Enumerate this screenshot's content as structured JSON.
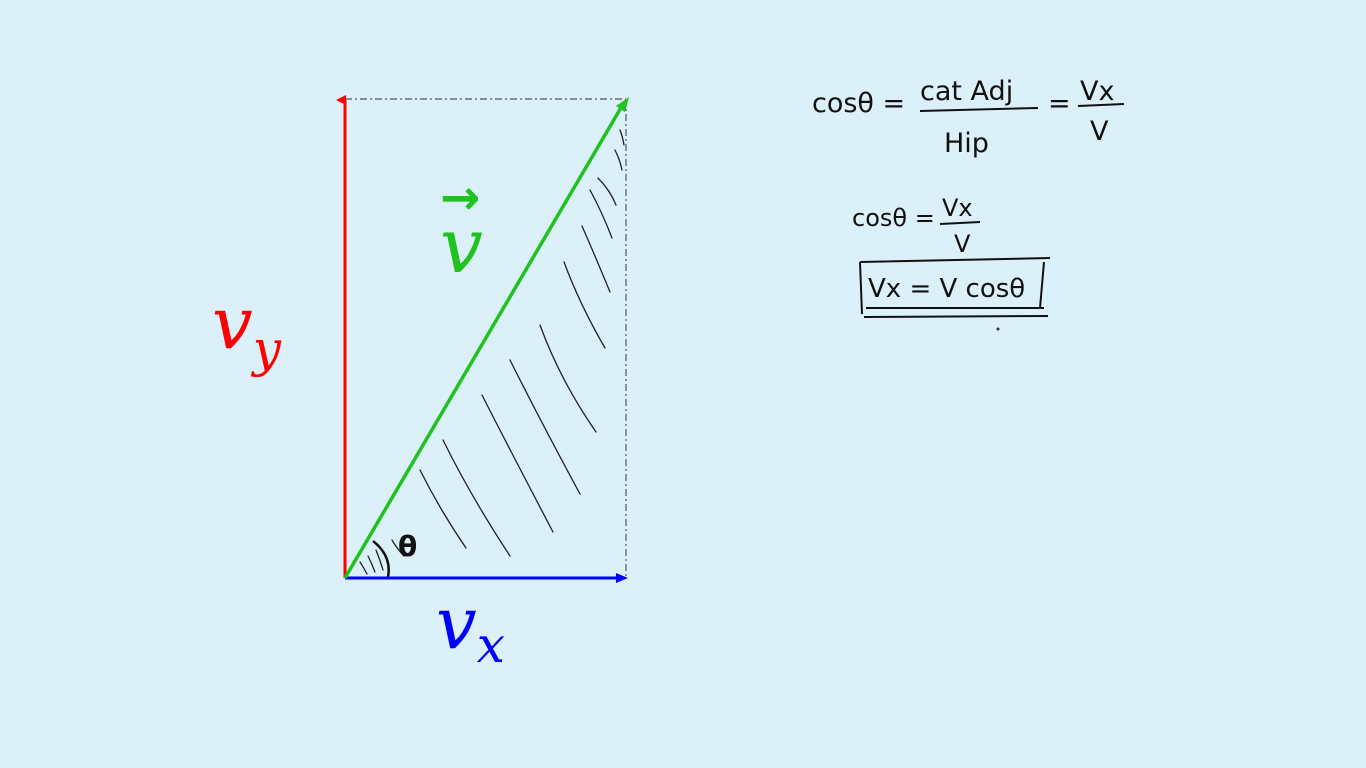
{
  "diagram": {
    "labels": {
      "vy": {
        "main": "v",
        "sub": "y"
      },
      "vx": {
        "main": "v",
        "sub": "x"
      },
      "v": {
        "main": "v",
        "arrow": "→"
      },
      "theta": "θ"
    },
    "colors": {
      "background": "#dbf0f9",
      "vy": "#ff0000",
      "vx": "#0000ff",
      "v": "#1fc21f",
      "ink": "#111111",
      "guide": "#555555"
    }
  },
  "equations": {
    "eq1": {
      "lhs": "cosθ =",
      "num": "cat Adj",
      "den": "Hip",
      "eq2": "=",
      "num2": "Vx",
      "den2": "V"
    },
    "eq2": {
      "lhs": "cosθ =",
      "num": "Vx",
      "den": "V"
    },
    "boxed": "Vx = V cosθ"
  }
}
